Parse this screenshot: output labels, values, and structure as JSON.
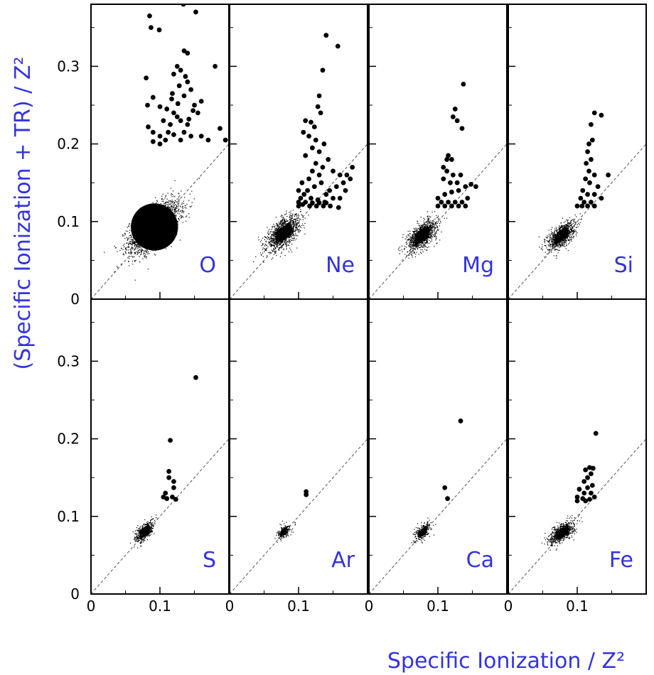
{
  "chart_data": {
    "type": "scatter",
    "layout_description": "2x4 grid of scatter panels sharing axes",
    "xlabel": "Specific Ionization / Z²",
    "ylabel": "(Specific Ionization + TR) / Z²",
    "xlim": [
      0,
      0.2
    ],
    "ylim": [
      0,
      0.38
    ],
    "xticks": [
      0,
      0.1
    ],
    "xtick_labels": [
      "0",
      "0.1"
    ],
    "yticks": [
      0,
      0.1,
      0.2,
      0.3
    ],
    "ytick_labels": [
      "0",
      "0.1",
      "0.2",
      "0.3"
    ],
    "diagonal_reference": "dashed y = x",
    "grid": false,
    "label_color": "#3333dd",
    "panels": [
      {
        "element": "O",
        "cloud": {
          "cx": 0.092,
          "cy": 0.093,
          "sx": 0.018,
          "sy": 0.016,
          "n": 2600,
          "dense": true
        },
        "points": [
          [
            0.085,
            0.365
          ],
          [
            0.087,
            0.35
          ],
          [
            0.099,
            0.347
          ],
          [
            0.134,
            0.38
          ],
          [
            0.152,
            0.37
          ],
          [
            0.18,
            0.3
          ],
          [
            0.08,
            0.285
          ],
          [
            0.135,
            0.32
          ],
          [
            0.14,
            0.317
          ],
          [
            0.125,
            0.3
          ],
          [
            0.13,
            0.295
          ],
          [
            0.12,
            0.29
          ],
          [
            0.137,
            0.287
          ],
          [
            0.14,
            0.28
          ],
          [
            0.128,
            0.275
          ],
          [
            0.145,
            0.27
          ],
          [
            0.118,
            0.265
          ],
          [
            0.135,
            0.262
          ],
          [
            0.09,
            0.26
          ],
          [
            0.082,
            0.25
          ],
          [
            0.1,
            0.248
          ],
          [
            0.11,
            0.245
          ],
          [
            0.15,
            0.25
          ],
          [
            0.16,
            0.255
          ],
          [
            0.155,
            0.24
          ],
          [
            0.12,
            0.24
          ],
          [
            0.125,
            0.235
          ],
          [
            0.13,
            0.23
          ],
          [
            0.105,
            0.23
          ],
          [
            0.115,
            0.225
          ],
          [
            0.14,
            0.225
          ],
          [
            0.083,
            0.222
          ],
          [
            0.09,
            0.215
          ],
          [
            0.1,
            0.21
          ],
          [
            0.108,
            0.205
          ],
          [
            0.12,
            0.212
          ],
          [
            0.13,
            0.205
          ],
          [
            0.145,
            0.21
          ],
          [
            0.16,
            0.21
          ],
          [
            0.17,
            0.205
          ],
          [
            0.187,
            0.22
          ],
          [
            0.195,
            0.205
          ],
          [
            0.09,
            0.203
          ],
          [
            0.1,
            0.2
          ],
          [
            0.135,
            0.215
          ],
          [
            0.142,
            0.232
          ],
          [
            0.126,
            0.252
          ],
          [
            0.117,
            0.258
          ],
          [
            0.148,
            0.243
          ],
          [
            0.112,
            0.215
          ]
        ]
      },
      {
        "element": "Ne",
        "cloud": {
          "cx": 0.078,
          "cy": 0.085,
          "sx": 0.012,
          "sy": 0.011,
          "n": 1200,
          "dense": false
        },
        "points": [
          [
            0.14,
            0.34
          ],
          [
            0.157,
            0.326
          ],
          [
            0.135,
            0.295
          ],
          [
            0.13,
            0.262
          ],
          [
            0.128,
            0.248
          ],
          [
            0.132,
            0.24
          ],
          [
            0.11,
            0.23
          ],
          [
            0.118,
            0.228
          ],
          [
            0.123,
            0.222
          ],
          [
            0.107,
            0.215
          ],
          [
            0.115,
            0.21
          ],
          [
            0.125,
            0.205
          ],
          [
            0.137,
            0.2
          ],
          [
            0.12,
            0.195
          ],
          [
            0.13,
            0.19
          ],
          [
            0.143,
            0.18
          ],
          [
            0.11,
            0.185
          ],
          [
            0.125,
            0.175
          ],
          [
            0.135,
            0.17
          ],
          [
            0.15,
            0.165
          ],
          [
            0.16,
            0.16
          ],
          [
            0.17,
            0.16
          ],
          [
            0.175,
            0.155
          ],
          [
            0.165,
            0.15
          ],
          [
            0.155,
            0.145
          ],
          [
            0.145,
            0.14
          ],
          [
            0.14,
            0.135
          ],
          [
            0.15,
            0.13
          ],
          [
            0.16,
            0.13
          ],
          [
            0.13,
            0.16
          ],
          [
            0.12,
            0.165
          ],
          [
            0.115,
            0.155
          ],
          [
            0.105,
            0.15
          ],
          [
            0.1,
            0.14
          ],
          [
            0.108,
            0.135
          ],
          [
            0.118,
            0.13
          ],
          [
            0.128,
            0.128
          ],
          [
            0.138,
            0.125
          ],
          [
            0.1,
            0.125
          ],
          [
            0.11,
            0.125
          ],
          [
            0.12,
            0.124
          ],
          [
            0.13,
            0.124
          ],
          [
            0.14,
            0.124
          ],
          [
            0.103,
            0.13
          ],
          [
            0.113,
            0.14
          ],
          [
            0.123,
            0.145
          ],
          [
            0.133,
            0.15
          ],
          [
            0.168,
            0.14
          ],
          [
            0.178,
            0.17
          ],
          [
            0.158,
            0.118
          ],
          [
            0.1,
            0.12
          ],
          [
            0.106,
            0.122
          ],
          [
            0.116,
            0.12
          ],
          [
            0.126,
            0.12
          ],
          [
            0.136,
            0.12
          ],
          [
            0.146,
            0.12
          ]
        ]
      },
      {
        "element": "Mg",
        "cloud": {
          "cx": 0.077,
          "cy": 0.082,
          "sx": 0.011,
          "sy": 0.01,
          "n": 1000,
          "dense": false
        },
        "points": [
          [
            0.137,
            0.277
          ],
          [
            0.125,
            0.245
          ],
          [
            0.122,
            0.235
          ],
          [
            0.128,
            0.23
          ],
          [
            0.135,
            0.22
          ],
          [
            0.115,
            0.185
          ],
          [
            0.113,
            0.18
          ],
          [
            0.12,
            0.18
          ],
          [
            0.108,
            0.17
          ],
          [
            0.113,
            0.165
          ],
          [
            0.122,
            0.16
          ],
          [
            0.133,
            0.16
          ],
          [
            0.108,
            0.155
          ],
          [
            0.118,
            0.15
          ],
          [
            0.128,
            0.15
          ],
          [
            0.14,
            0.145
          ],
          [
            0.148,
            0.148
          ],
          [
            0.155,
            0.145
          ],
          [
            0.13,
            0.14
          ],
          [
            0.12,
            0.138
          ],
          [
            0.11,
            0.135
          ],
          [
            0.1,
            0.13
          ],
          [
            0.105,
            0.125
          ],
          [
            0.115,
            0.125
          ],
          [
            0.125,
            0.125
          ],
          [
            0.135,
            0.125
          ],
          [
            0.1,
            0.12
          ],
          [
            0.11,
            0.12
          ],
          [
            0.12,
            0.12
          ],
          [
            0.13,
            0.12
          ],
          [
            0.14,
            0.12
          ],
          [
            0.143,
            0.13
          ]
        ]
      },
      {
        "element": "Si",
        "cloud": {
          "cx": 0.077,
          "cy": 0.082,
          "sx": 0.01,
          "sy": 0.009,
          "n": 900,
          "dense": false
        },
        "points": [
          [
            0.125,
            0.24
          ],
          [
            0.135,
            0.237
          ],
          [
            0.12,
            0.225
          ],
          [
            0.122,
            0.205
          ],
          [
            0.117,
            0.2
          ],
          [
            0.115,
            0.19
          ],
          [
            0.12,
            0.18
          ],
          [
            0.113,
            0.175
          ],
          [
            0.117,
            0.165
          ],
          [
            0.125,
            0.16
          ],
          [
            0.145,
            0.16
          ],
          [
            0.112,
            0.155
          ],
          [
            0.118,
            0.15
          ],
          [
            0.13,
            0.145
          ],
          [
            0.108,
            0.14
          ],
          [
            0.115,
            0.135
          ],
          [
            0.125,
            0.135
          ],
          [
            0.105,
            0.13
          ],
          [
            0.11,
            0.125
          ],
          [
            0.12,
            0.125
          ],
          [
            0.1,
            0.12
          ],
          [
            0.107,
            0.12
          ],
          [
            0.115,
            0.12
          ],
          [
            0.125,
            0.12
          ],
          [
            0.135,
            0.13
          ]
        ]
      },
      {
        "element": "S",
        "cloud": {
          "cx": 0.078,
          "cy": 0.08,
          "sx": 0.007,
          "sy": 0.007,
          "n": 450,
          "dense": false
        },
        "points": [
          [
            0.152,
            0.279
          ],
          [
            0.115,
            0.198
          ],
          [
            0.113,
            0.158
          ],
          [
            0.113,
            0.15
          ],
          [
            0.12,
            0.145
          ],
          [
            0.12,
            0.137
          ],
          [
            0.108,
            0.13
          ],
          [
            0.105,
            0.125
          ],
          [
            0.11,
            0.123
          ],
          [
            0.118,
            0.125
          ],
          [
            0.123,
            0.122
          ]
        ]
      },
      {
        "element": "Ar",
        "cloud": {
          "cx": 0.079,
          "cy": 0.08,
          "sx": 0.005,
          "sy": 0.005,
          "n": 200,
          "dense": false
        },
        "points": [
          [
            0.111,
            0.132
          ],
          [
            0.111,
            0.128
          ]
        ]
      },
      {
        "element": "Ca",
        "cloud": {
          "cx": 0.078,
          "cy": 0.08,
          "sx": 0.006,
          "sy": 0.006,
          "n": 250,
          "dense": false
        },
        "points": [
          [
            0.133,
            0.223
          ],
          [
            0.11,
            0.137
          ],
          [
            0.114,
            0.123
          ]
        ]
      },
      {
        "element": "Fe",
        "cloud": {
          "cx": 0.078,
          "cy": 0.079,
          "sx": 0.009,
          "sy": 0.007,
          "n": 700,
          "dense": false
        },
        "points": [
          [
            0.127,
            0.207
          ],
          [
            0.118,
            0.163
          ],
          [
            0.123,
            0.162
          ],
          [
            0.112,
            0.16
          ],
          [
            0.12,
            0.155
          ],
          [
            0.115,
            0.15
          ],
          [
            0.11,
            0.145
          ],
          [
            0.122,
            0.14
          ],
          [
            0.115,
            0.137
          ],
          [
            0.103,
            0.135
          ],
          [
            0.11,
            0.13
          ],
          [
            0.12,
            0.13
          ],
          [
            0.1,
            0.125
          ],
          [
            0.108,
            0.123
          ],
          [
            0.118,
            0.122
          ],
          [
            0.125,
            0.125
          ],
          [
            0.1,
            0.12
          ],
          [
            0.112,
            0.12
          ]
        ]
      }
    ]
  }
}
